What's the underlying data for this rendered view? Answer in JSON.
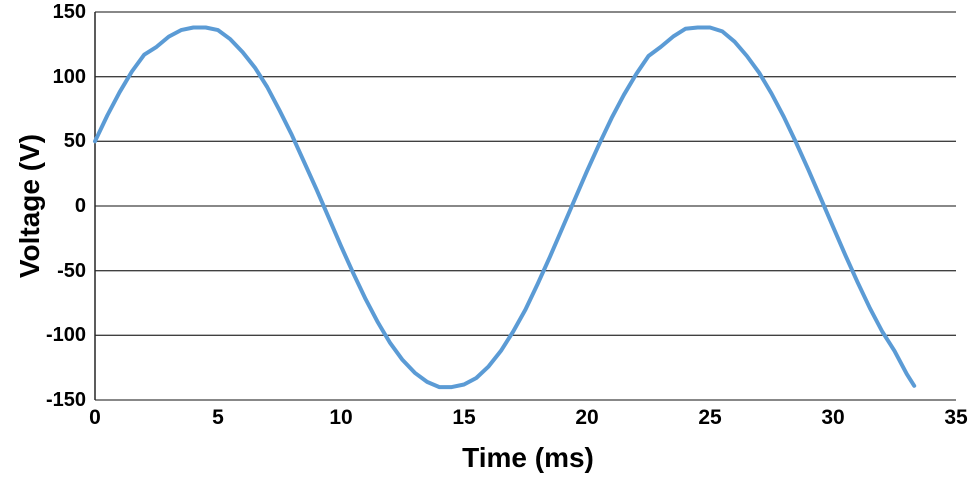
{
  "chart_data": {
    "type": "line",
    "title": "",
    "xlabel": "Time (ms)",
    "ylabel": "Voltage (V)",
    "xlim": [
      0,
      35
    ],
    "ylim": [
      -150,
      150
    ],
    "xticks": [
      "0",
      "5",
      "10",
      "15",
      "20",
      "25",
      "30",
      "35"
    ],
    "xtick_values": [
      0,
      5,
      10,
      15,
      20,
      25,
      30,
      35
    ],
    "yticks": [
      "150",
      "100",
      "50",
      "0",
      "-50",
      "-100",
      "-150"
    ],
    "ytick_values": [
      150,
      100,
      50,
      0,
      -50,
      -100,
      -150
    ],
    "grid": "horizontal",
    "legend": "none",
    "colors": {
      "line": "#5B9BD5",
      "grid": "#404040",
      "axis": "#262626",
      "text": "#000000",
      "background": "#FFFFFF"
    },
    "series": [
      {
        "name": "Voltage",
        "x": [
          0,
          0.5,
          1,
          1.5,
          2,
          2.5,
          3,
          3.5,
          4,
          4.5,
          5,
          5.5,
          6,
          6.5,
          7,
          7.5,
          8,
          8.5,
          9,
          9.5,
          10,
          10.5,
          11,
          11.5,
          12,
          12.5,
          13,
          13.5,
          14,
          14.5,
          15,
          15.5,
          16,
          16.5,
          17,
          17.5,
          18,
          18.5,
          19,
          19.5,
          20,
          20.5,
          21,
          21.5,
          22,
          22.5,
          23,
          23.5,
          24,
          24.5,
          25,
          25.5,
          26,
          26.5,
          27,
          27.5,
          28,
          28.5,
          29,
          29.5,
          30,
          30.5,
          31,
          31.5,
          32,
          32.5,
          33,
          33.3
        ],
        "y": [
          50,
          70,
          88,
          104,
          117,
          123,
          131,
          136,
          138,
          138,
          136,
          129,
          119,
          107,
          92,
          74,
          55,
          34,
          13,
          -9,
          -31,
          -52,
          -72,
          -90,
          -106,
          -119,
          -129,
          -136,
          -140,
          -140,
          -138,
          -133,
          -124,
          -112,
          -97,
          -80,
          -60,
          -39,
          -17,
          5,
          27,
          48,
          68,
          86,
          102,
          116,
          123,
          131,
          137,
          138,
          138,
          135,
          127,
          116,
          103,
          87,
          69,
          49,
          28,
          6,
          -16,
          -38,
          -59,
          -79,
          -97,
          -112,
          -130,
          -139
        ]
      }
    ]
  }
}
